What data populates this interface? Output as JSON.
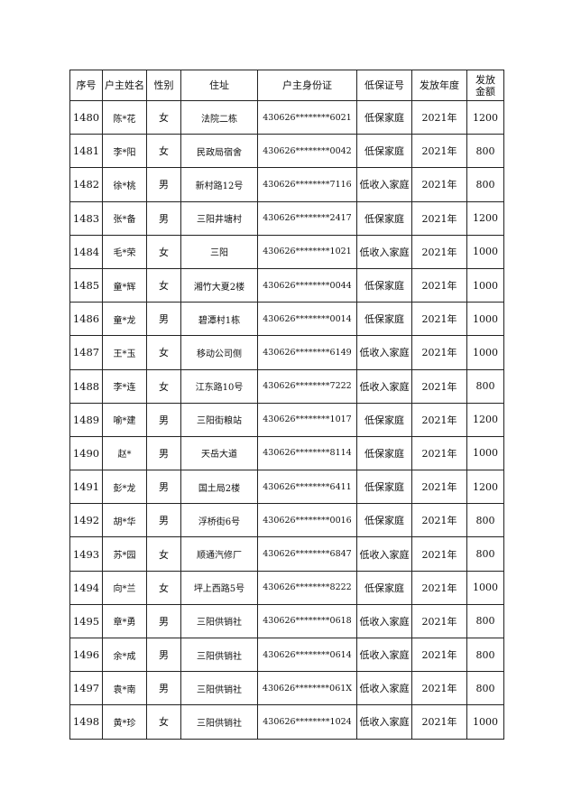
{
  "table": {
    "headers": [
      "序号",
      "户主姓名",
      "性别",
      "住址",
      "户主身份证",
      "低保证号",
      "发放年度",
      "发放\n金额"
    ],
    "header_amount_line1": "发放",
    "header_amount_line2": "金额",
    "rows": [
      [
        "1480",
        "陈*花",
        "女",
        "法院二栋",
        "430626********6021",
        "低保家庭",
        "2021年",
        "1200"
      ],
      [
        "1481",
        "李*阳",
        "女",
        "民政局宿舍",
        "430626********0042",
        "低保家庭",
        "2021年",
        "800"
      ],
      [
        "1482",
        "徐*桃",
        "男",
        "新村路12号",
        "430626********7116",
        "低收入家庭",
        "2021年",
        "800"
      ],
      [
        "1483",
        "张*备",
        "男",
        "三阳井塘村",
        "430626********2417",
        "低保家庭",
        "2021年",
        "1200"
      ],
      [
        "1484",
        "毛*荣",
        "女",
        "三阳",
        "430626********1021",
        "低收入家庭",
        "2021年",
        "1000"
      ],
      [
        "1485",
        "童*辉",
        "女",
        "湘竹大夏2楼",
        "430626********0044",
        "低保家庭",
        "2021年",
        "1000"
      ],
      [
        "1486",
        "童*龙",
        "男",
        "碧潭村1栋",
        "430626********0014",
        "低保家庭",
        "2021年",
        "1000"
      ],
      [
        "1487",
        "王*玉",
        "女",
        "移动公司侧",
        "430626********6149",
        "低收入家庭",
        "2021年",
        "1000"
      ],
      [
        "1488",
        "李*连",
        "女",
        "江东路10号",
        "430626********7222",
        "低收入家庭",
        "2021年",
        "800"
      ],
      [
        "1489",
        "喻*建",
        "男",
        "三阳街粮站",
        "430626********1017",
        "低保家庭",
        "2021年",
        "1200"
      ],
      [
        "1490",
        "赵*",
        "男",
        "天岳大道",
        "430626********8114",
        "低保家庭",
        "2021年",
        "1000"
      ],
      [
        "1491",
        "彭*龙",
        "男",
        "国土局2楼",
        "430626********6411",
        "低保家庭",
        "2021年",
        "1200"
      ],
      [
        "1492",
        "胡*华",
        "男",
        "浮桥街6号",
        "430626********0016",
        "低保家庭",
        "2021年",
        "800"
      ],
      [
        "1493",
        "苏*园",
        "女",
        "顺通汽修厂",
        "430626********6847",
        "低收入家庭",
        "2021年",
        "800"
      ],
      [
        "1494",
        "向*兰",
        "女",
        "坪上西路5号",
        "430626********8222",
        "低保家庭",
        "2021年",
        "1000"
      ],
      [
        "1495",
        "章*勇",
        "男",
        "三阳供销社",
        "430626********0618",
        "低收入家庭",
        "2021年",
        "800"
      ],
      [
        "1496",
        "余*成",
        "男",
        "三阳供销社",
        "430626********0614",
        "低收入家庭",
        "2021年",
        "800"
      ],
      [
        "1497",
        "袁*南",
        "男",
        "三阳供销社",
        "430626********061X",
        "低收入家庭",
        "2021年",
        "800"
      ],
      [
        "1498",
        "黄*珍",
        "女",
        "三阳供销社",
        "430626********1024",
        "低收入家庭",
        "2021年",
        "1000"
      ]
    ]
  }
}
